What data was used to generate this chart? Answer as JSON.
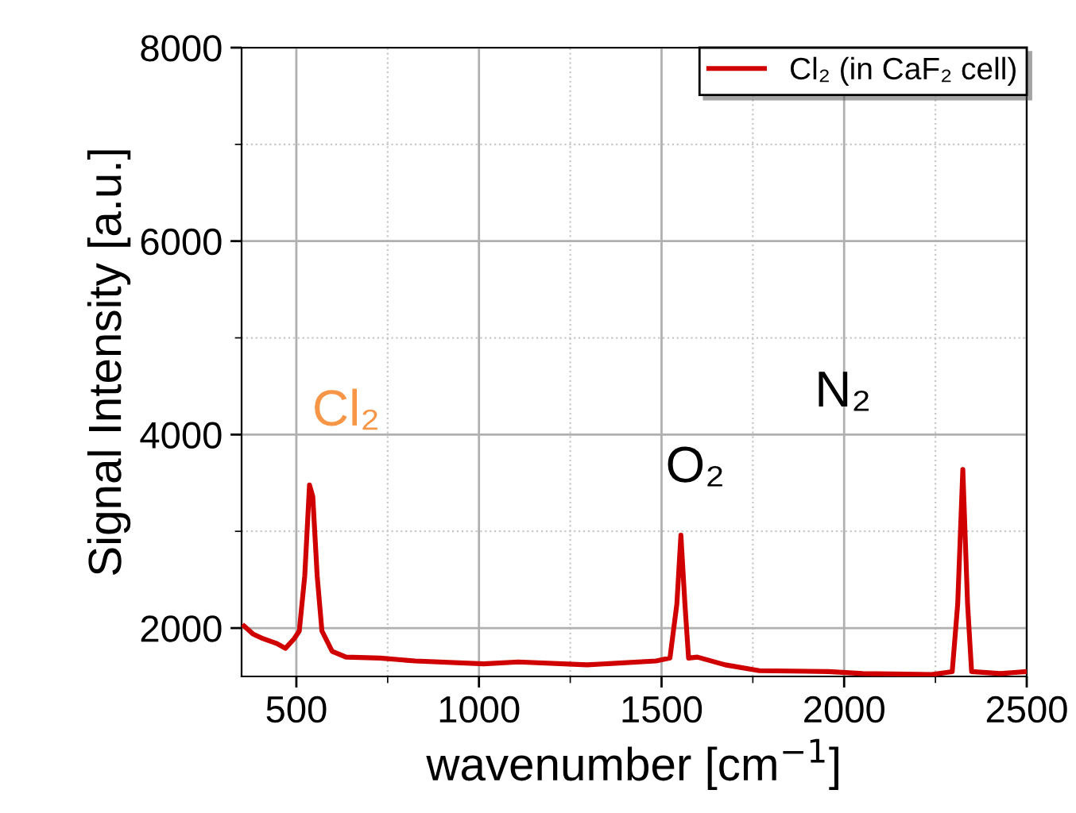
{
  "chart_data": {
    "type": "line",
    "xlabel": "wavenumber [cm$^{−1}$]",
    "ylabel": "Signal Intensity [a.u.]",
    "xlim": [
      350,
      2500
    ],
    "ylim": [
      1500,
      8000
    ],
    "xticks": [
      500,
      1000,
      1500,
      2000,
      2500
    ],
    "yticks": [
      2000,
      4000,
      6000,
      8000
    ],
    "grid": true,
    "legend": "top right",
    "line_style": "solid",
    "marker": "none",
    "series": [
      {
        "name": "Cl₂ (in CaF₂ cell)",
        "color": "#d00000",
        "x": [
          357,
          381,
          409,
          447,
          470,
          494,
          508,
          523,
          536,
          545,
          557,
          570,
          598,
          636,
          730,
          825,
          1013,
          1108,
          1296,
          1485,
          1523,
          1542,
          1553,
          1564,
          1574,
          1598,
          1674,
          1768,
          1957,
          2051,
          2240,
          2296,
          2311,
          2325,
          2338,
          2349,
          2428,
          2498
        ],
        "values": [
          2020,
          1940,
          1890,
          1840,
          1790,
          1890,
          1970,
          2540,
          3480,
          3360,
          2540,
          1970,
          1760,
          1700,
          1690,
          1660,
          1630,
          1650,
          1620,
          1660,
          1690,
          2250,
          2960,
          2250,
          1690,
          1700,
          1620,
          1560,
          1550,
          1530,
          1520,
          1550,
          2250,
          3640,
          2250,
          1550,
          1530,
          1550
        ]
      }
    ],
    "annotations": [
      "Cl₂",
      "O₂",
      "N₂"
    ]
  }
}
